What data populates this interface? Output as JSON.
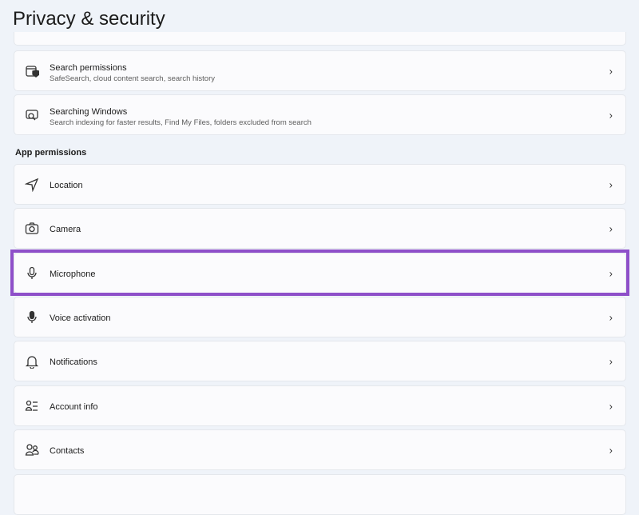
{
  "page_title": "Privacy & security",
  "search_items": [
    {
      "title": "Search permissions",
      "subtitle": "SafeSearch, cloud content search, search history",
      "icon": "search-permissions-icon"
    },
    {
      "title": "Searching Windows",
      "subtitle": "Search indexing for faster results, Find My Files, folders excluded from search",
      "icon": "searching-windows-icon"
    }
  ],
  "section_label": "App permissions",
  "app_permissions": [
    {
      "title": "Location",
      "icon": "location-icon"
    },
    {
      "title": "Camera",
      "icon": "camera-icon"
    },
    {
      "title": "Microphone",
      "icon": "microphone-icon"
    },
    {
      "title": "Voice activation",
      "icon": "voice-activation-icon"
    },
    {
      "title": "Notifications",
      "icon": "bell-icon"
    },
    {
      "title": "Account info",
      "icon": "account-info-icon"
    },
    {
      "title": "Contacts",
      "icon": "contacts-icon"
    }
  ],
  "highlight_color": "#8e4fc9",
  "chevron": "›"
}
